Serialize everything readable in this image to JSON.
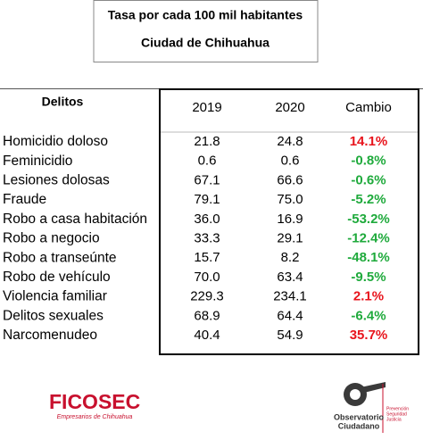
{
  "header": {
    "title": "Tasa por cada 100 mil habitantes",
    "subtitle": "Ciudad de Chihuahua"
  },
  "table": {
    "columns": [
      "Delitos",
      "2019",
      "2020",
      "Cambio"
    ],
    "rows": [
      {
        "delito": "Homicidio doloso",
        "y2019": "21.8",
        "y2020": "24.8",
        "cambio": "14.1%",
        "color": "#e8141c"
      },
      {
        "delito": "Feminicidio",
        "y2019": "0.6",
        "y2020": "0.6",
        "cambio": "-0.8%",
        "color": "#1faa3c"
      },
      {
        "delito": "Lesiones dolosas",
        "y2019": "67.1",
        "y2020": "66.6",
        "cambio": "-0.6%",
        "color": "#1faa3c"
      },
      {
        "delito": "Fraude",
        "y2019": "79.1",
        "y2020": "75.0",
        "cambio": "-5.2%",
        "color": "#1faa3c"
      },
      {
        "delito": "Robo a casa habitación",
        "y2019": "36.0",
        "y2020": "16.9",
        "cambio": "-53.2%",
        "color": "#1faa3c"
      },
      {
        "delito": "Robo a negocio",
        "y2019": "33.3",
        "y2020": "29.1",
        "cambio": "-12.4%",
        "color": "#1faa3c"
      },
      {
        "delito": "Robo a transeúnte",
        "y2019": "15.7",
        "y2020": "8.2",
        "cambio": "-48.1%",
        "color": "#1faa3c"
      },
      {
        "delito": "Robo de vehículo",
        "y2019": "70.0",
        "y2020": "63.4",
        "cambio": "-9.5%",
        "color": "#1faa3c"
      },
      {
        "delito": "Violencia familiar",
        "y2019": "229.3",
        "y2020": "234.1",
        "cambio": "2.1%",
        "color": "#e8141c"
      },
      {
        "delito": "Delitos sexuales",
        "y2019": "68.9",
        "y2020": "64.4",
        "cambio": "-6.4%",
        "color": "#1faa3c"
      },
      {
        "delito": "Narcomenudeo",
        "y2019": "40.4",
        "y2020": "54.9",
        "cambio": "35.7%",
        "color": "#e8141c"
      }
    ]
  },
  "footer": {
    "left_logo": "FICOSEC",
    "left_tagline": "Empresarios de Chihuahua",
    "right_logo": [
      "Observatorio",
      "Ciudadano"
    ],
    "right_tagline": [
      "Prevención",
      "Seguridad",
      "Justicia"
    ]
  }
}
